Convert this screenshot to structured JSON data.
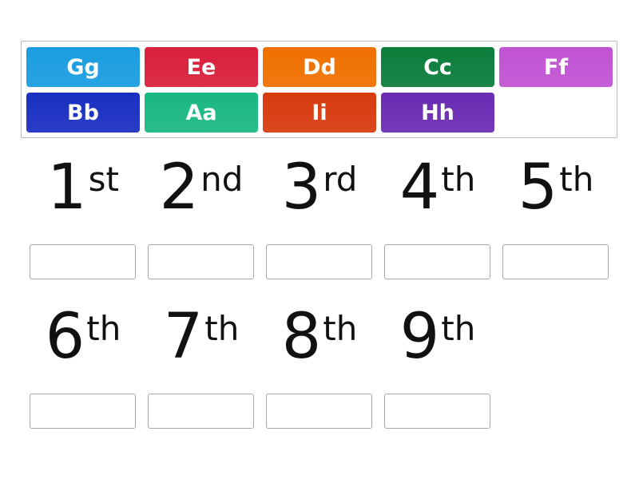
{
  "tiles": [
    {
      "label": "Gg",
      "color": "#1a9de0"
    },
    {
      "label": "Ee",
      "color": "#d91f3b"
    },
    {
      "label": "Dd",
      "color": "#f07000"
    },
    {
      "label": "Cc",
      "color": "#0b7d3b"
    },
    {
      "label": "Ff",
      "color": "#c153d3"
    },
    {
      "label": "Bb",
      "color": "#1a2fc2"
    },
    {
      "label": "Aa",
      "color": "#1ab881"
    },
    {
      "label": "Ii",
      "color": "#d83a0e"
    },
    {
      "label": "Hh",
      "color": "#6a2bb3"
    }
  ],
  "slots": [
    {
      "num": "1",
      "suffix": "st"
    },
    {
      "num": "2",
      "suffix": "nd"
    },
    {
      "num": "3",
      "suffix": "rd"
    },
    {
      "num": "4",
      "suffix": "th"
    },
    {
      "num": "5",
      "suffix": "th"
    },
    {
      "num": "6",
      "suffix": "th"
    },
    {
      "num": "7",
      "suffix": "th"
    },
    {
      "num": "8",
      "suffix": "th"
    },
    {
      "num": "9",
      "suffix": "th"
    }
  ]
}
